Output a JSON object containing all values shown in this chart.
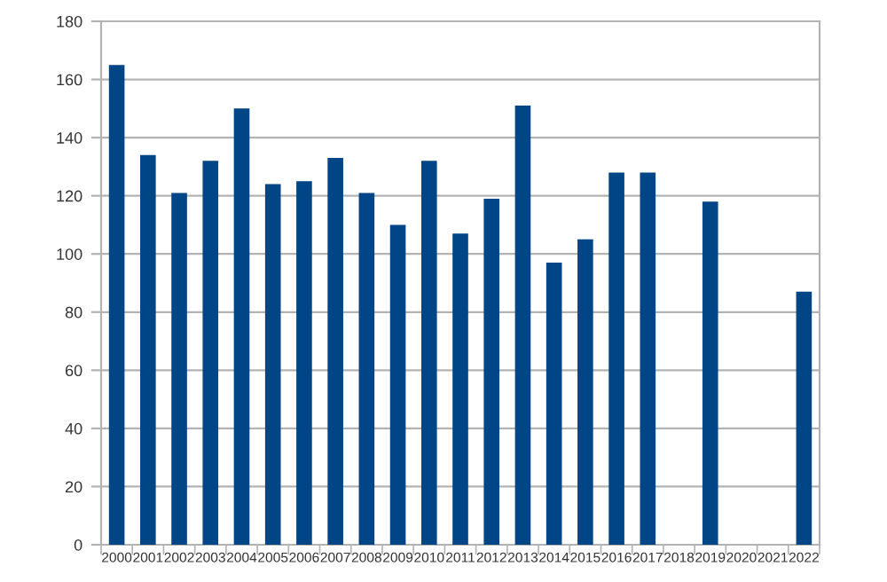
{
  "chart_data": {
    "type": "bar",
    "categories": [
      "2000",
      "2001",
      "2002",
      "2003",
      "2004",
      "2005",
      "2006",
      "2007",
      "2008",
      "2009",
      "2010",
      "2011",
      "2012",
      "2013",
      "2014",
      "2015",
      "2016",
      "2017",
      "2018",
      "2019",
      "2020",
      "2021",
      "2022"
    ],
    "values": [
      165,
      134,
      121,
      132,
      150,
      124,
      125,
      133,
      121,
      110,
      132,
      107,
      119,
      151,
      97,
      105,
      128,
      128,
      null,
      118,
      null,
      null,
      87
    ],
    "color": "#004586",
    "ylim": [
      0,
      180
    ],
    "yticks": [
      0,
      20,
      40,
      60,
      80,
      100,
      120,
      140,
      160,
      180
    ],
    "grid": "y"
  }
}
